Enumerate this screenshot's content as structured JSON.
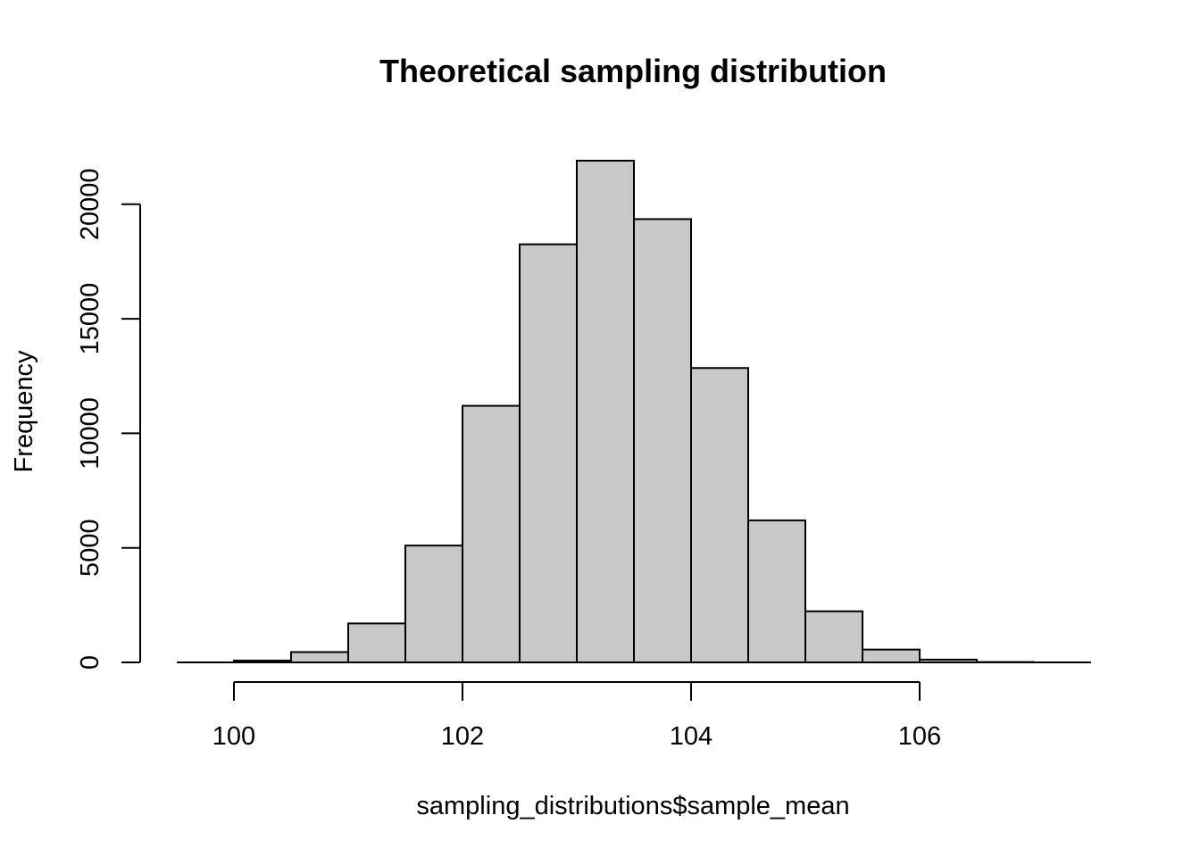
{
  "chart_data": {
    "type": "bar",
    "title": "Theoretical sampling distribution",
    "xlabel": "sampling_distributions$sample_mean",
    "ylabel": "Frequency",
    "bin_width": 0.5,
    "bins": [
      {
        "start": 100.0,
        "end": 100.5,
        "count": 80
      },
      {
        "start": 100.5,
        "end": 101.0,
        "count": 450
      },
      {
        "start": 101.0,
        "end": 101.5,
        "count": 1700
      },
      {
        "start": 101.5,
        "end": 102.0,
        "count": 5100
      },
      {
        "start": 102.0,
        "end": 102.5,
        "count": 11200
      },
      {
        "start": 102.5,
        "end": 103.0,
        "count": 18250
      },
      {
        "start": 103.0,
        "end": 103.5,
        "count": 21900
      },
      {
        "start": 103.5,
        "end": 104.0,
        "count": 19350
      },
      {
        "start": 104.0,
        "end": 104.5,
        "count": 12850
      },
      {
        "start": 104.5,
        "end": 105.0,
        "count": 6200
      },
      {
        "start": 105.0,
        "end": 105.5,
        "count": 2230
      },
      {
        "start": 105.5,
        "end": 106.0,
        "count": 560
      },
      {
        "start": 106.0,
        "end": 106.5,
        "count": 120
      },
      {
        "start": 106.5,
        "end": 107.0,
        "count": 15
      },
      {
        "start": 107.0,
        "end": 107.5,
        "count": 0
      }
    ],
    "xlim": [
      99.5,
      107.5
    ],
    "ylim": [
      0,
      22000
    ],
    "x_ticks": [
      100,
      102,
      104,
      106
    ],
    "y_ticks": [
      0,
      5000,
      10000,
      15000,
      20000
    ],
    "x_tick_labels": [
      "100",
      "102",
      "104",
      "106"
    ],
    "y_tick_labels": [
      "0",
      "5000",
      "10000",
      "15000",
      "20000"
    ],
    "bar_color": "#c8c8c8",
    "grid": false,
    "legend": "none"
  }
}
